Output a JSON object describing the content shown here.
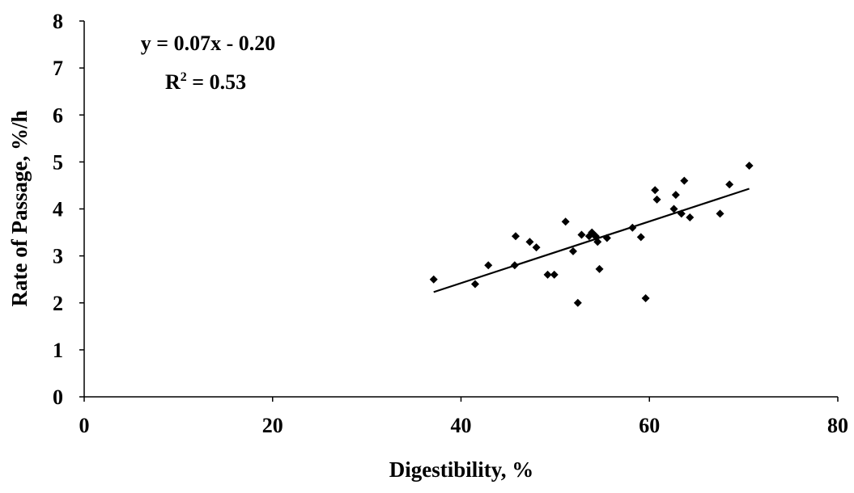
{
  "chart_data": {
    "type": "scatter",
    "title": "",
    "xlabel": "Digestibility, %",
    "ylabel": "Rate of Passage, %/h",
    "xlim": [
      0,
      80
    ],
    "ylim": [
      0,
      8
    ],
    "x_ticks": [
      "0",
      "20",
      "40",
      "60",
      "80"
    ],
    "y_ticks": [
      "0",
      "1",
      "2",
      "3",
      "4",
      "5",
      "6",
      "7",
      "8"
    ],
    "grid": false,
    "legend": "none",
    "marker": "diamond",
    "marker_color": "#000000",
    "line_color": "#000000",
    "annotations": {
      "equation": "y = 0.07x - 0.20",
      "r2_label": "R",
      "r2_sup": "2",
      "r2_value": " = 0.53"
    },
    "trendline": {
      "slope": 0.07,
      "intercept": -0.2,
      "x_range": [
        37.1,
        70.6
      ],
      "y_range": [
        2.23,
        4.43
      ]
    },
    "points": [
      {
        "x": 37.1,
        "y": 2.5
      },
      {
        "x": 41.5,
        "y": 2.4
      },
      {
        "x": 42.9,
        "y": 2.8
      },
      {
        "x": 45.7,
        "y": 2.8
      },
      {
        "x": 45.8,
        "y": 3.42
      },
      {
        "x": 47.3,
        "y": 3.3
      },
      {
        "x": 48.0,
        "y": 3.18
      },
      {
        "x": 49.2,
        "y": 2.6
      },
      {
        "x": 49.9,
        "y": 2.6
      },
      {
        "x": 51.1,
        "y": 3.73
      },
      {
        "x": 51.9,
        "y": 3.1
      },
      {
        "x": 52.4,
        "y": 2.0
      },
      {
        "x": 52.8,
        "y": 3.45
      },
      {
        "x": 53.6,
        "y": 3.42
      },
      {
        "x": 53.9,
        "y": 3.5
      },
      {
        "x": 54.1,
        "y": 3.45
      },
      {
        "x": 54.3,
        "y": 3.42
      },
      {
        "x": 54.5,
        "y": 3.3
      },
      {
        "x": 54.7,
        "y": 2.72
      },
      {
        "x": 55.5,
        "y": 3.38
      },
      {
        "x": 58.2,
        "y": 3.6
      },
      {
        "x": 59.1,
        "y": 3.4
      },
      {
        "x": 59.6,
        "y": 2.1
      },
      {
        "x": 60.6,
        "y": 4.4
      },
      {
        "x": 60.8,
        "y": 4.2
      },
      {
        "x": 62.6,
        "y": 4.0
      },
      {
        "x": 62.8,
        "y": 4.3
      },
      {
        "x": 63.4,
        "y": 3.9
      },
      {
        "x": 63.7,
        "y": 4.6
      },
      {
        "x": 64.3,
        "y": 3.82
      },
      {
        "x": 67.5,
        "y": 3.9
      },
      {
        "x": 68.5,
        "y": 4.52
      },
      {
        "x": 70.6,
        "y": 4.92
      }
    ]
  }
}
